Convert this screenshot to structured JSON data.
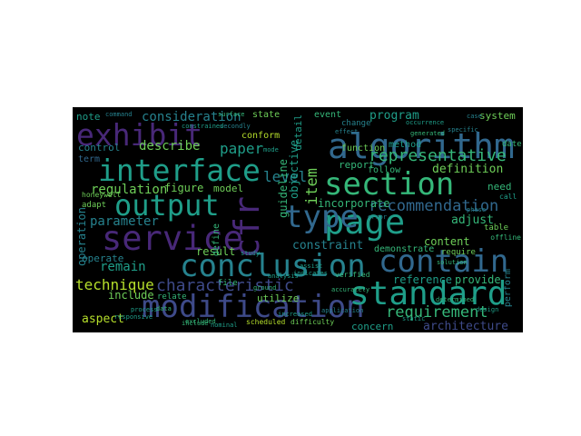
{
  "palette": {
    "background": "#ffffff",
    "cloud_background": "#000000",
    "colors": [
      "#440154",
      "#482878",
      "#3e4a89",
      "#31688e",
      "#26828e",
      "#1f9e89",
      "#35b779",
      "#6ece58",
      "#b5de2b",
      "#fde725"
    ]
  },
  "words": [
    "conclusion",
    "algorithm",
    "interface",
    "modification",
    "standard",
    "contain",
    "service",
    "output",
    "section",
    "exhibit",
    "page",
    "type",
    "cfr",
    "characteristic",
    "representative",
    "recommendation",
    "requirement",
    "consideration",
    "paper",
    "level",
    "item",
    "technique",
    "parameter",
    "regulation",
    "remain",
    "describe",
    "definition",
    "constraint",
    "architecture",
    "include",
    "incorporate",
    "guideline",
    "objective",
    "detail",
    "figure",
    "operation",
    "report",
    "program",
    "aspect",
    "adjust",
    "reference",
    "content",
    "provide",
    "concern",
    "result",
    "model",
    "define",
    "event",
    "system",
    "method",
    "state",
    "conform",
    "function",
    "follow",
    "demonstrate",
    "utilize",
    "relate",
    "note",
    "control",
    "term",
    "adapt",
    "operate",
    "need",
    "change",
    "perform",
    "file",
    "require",
    "date",
    "table",
    "call",
    "honeywell",
    "offline",
    "verified",
    "accurately",
    "difficulty",
    "scheduled",
    "excluded",
    "nominal",
    "static",
    "responsive",
    "surface",
    "secondly",
    "constrained",
    "determined",
    "command",
    "occurrence",
    "effect",
    "indicates",
    "case",
    "ground",
    "assist",
    "generated",
    "include",
    "analysis",
    "application",
    "error",
    "mode",
    "phase",
    "data",
    "process",
    "specific",
    "study",
    "increased",
    "solution",
    "design"
  ]
}
